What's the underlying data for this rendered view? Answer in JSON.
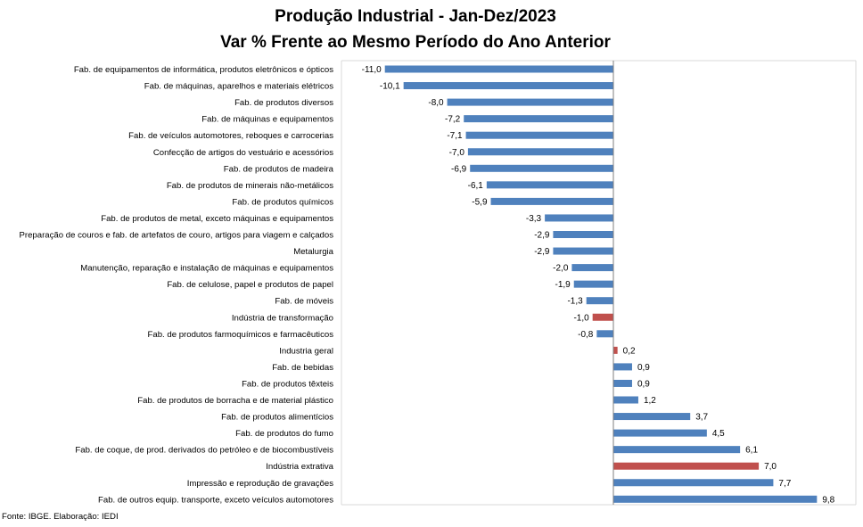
{
  "chart_data": {
    "type": "bar",
    "orientation": "horizontal",
    "title": "Produção Industrial - Jan-Dez/2023",
    "subtitle": "Var % Frente ao Mesmo Período do Ano Anterior",
    "source": "Fonte: IBGE. Elaboração: IEDI",
    "xlim": [
      -11.5,
      11
    ],
    "grid": false,
    "legend": "none",
    "colors": {
      "default": "#4F81BD",
      "highlight": "#C0504D"
    },
    "categories": [
      "Fab. de equipamentos de informática, produtos eletrônicos e ópticos",
      "Fab. de máquinas, aparelhos e materiais elétricos",
      "Fab. de produtos diversos",
      "Fab. de máquinas e equipamentos",
      "Fab. de veículos automotores, reboques e carrocerias",
      "Confecção de artigos do vestuário e acessórios",
      "Fab. de produtos de madeira",
      "Fab. de produtos de minerais não-metálicos",
      "Fab. de produtos químicos",
      "Fab. de produtos de metal, exceto máquinas e equipamentos",
      "Preparação de couros e fab. de artefatos de couro, artigos para viagem e calçados",
      "Metalurgia",
      "Manutenção, reparação e instalação de máquinas e equipamentos",
      "Fab. de celulose, papel e produtos de papel",
      "Fab. de móveis",
      "Indústria de transformação",
      "Fab. de produtos farmoquímicos e farmacêuticos",
      "Industria geral",
      "Fab. de bebidas",
      "Fab. de produtos têxteis",
      "Fab. de produtos de borracha e de material plástico",
      "Fab. de produtos alimentícios",
      "Fab. de produtos do fumo",
      "Fab. de coque, de prod. derivados do petróleo e de biocombustíveis",
      "Indústria extrativa",
      "Impressão e reprodução de gravações",
      "Fab. de outros equip. transporte, exceto veículos automotores"
    ],
    "values": [
      -11.0,
      -10.1,
      -8.0,
      -7.2,
      -7.1,
      -7.0,
      -6.9,
      -6.1,
      -5.9,
      -3.3,
      -2.9,
      -2.9,
      -2.0,
      -1.9,
      -1.3,
      -1.0,
      -0.8,
      0.2,
      0.9,
      0.9,
      1.2,
      3.7,
      4.5,
      6.1,
      7.0,
      7.7,
      9.8
    ],
    "value_labels": [
      "-11,0",
      "-10,1",
      "-8,0",
      "-7,2",
      "-7,1",
      "-7,0",
      "-6,9",
      "-6,1",
      "-5,9",
      "-3,3",
      "-2,9",
      "-2,9",
      "-2,0",
      "-1,9",
      "-1,3",
      "-1,0",
      "-0,8",
      "0,2",
      "0,9",
      "0,9",
      "1,2",
      "3,7",
      "4,5",
      "6,1",
      "7,0",
      "7,7",
      "9,8"
    ],
    "highlighted": [
      "Indústria de transformação",
      "Industria geral",
      "Indústria extrativa"
    ]
  }
}
